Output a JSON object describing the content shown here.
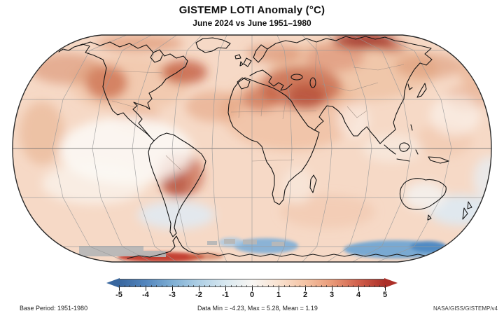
{
  "header": {
    "title": "GISTEMP LOTI Anomaly (°C)",
    "subtitle": "June 2024 vs June 1951–1980"
  },
  "footer": {
    "base_period": "Base Period: 1951-1980",
    "stats": "Data Min = -4.23, Max = 5.28, Mean = 1.19",
    "credit": "NASA/GISS/GISTEMP/v4"
  },
  "colorbar": {
    "min": -5,
    "max": 5,
    "minor_step": 0.2,
    "ticks": [
      -5,
      -4,
      -3,
      -2,
      -1,
      0,
      1,
      2,
      3,
      4,
      5
    ],
    "palette": [
      "#39679f",
      "#5285bd",
      "#7fafd4",
      "#aecfe5",
      "#d8e8f0",
      "#f8f6f3",
      "#f9e2d0",
      "#f4c3a4",
      "#e99a78",
      "#d05f4b",
      "#ac2f28"
    ],
    "units": "°C"
  },
  "chart_data": {
    "type": "heatmap",
    "title": "GISTEMP LOTI Anomaly (°C)",
    "subtitle": "June 2024 vs June 1951–1980",
    "projection": "Robinson world map",
    "variable": "Surface temperature anomaly",
    "units": "°C",
    "base_period": "1951-1980",
    "stats": {
      "data_min": -4.23,
      "data_max": 5.28,
      "mean": 1.19
    },
    "colorbar": {
      "range": [
        -5,
        5
      ],
      "ticks": [
        -5,
        -4,
        -3,
        -2,
        -1,
        0,
        1,
        2,
        3,
        4,
        5
      ],
      "orientation": "horizontal",
      "palette": [
        "#39679f",
        "#5285bd",
        "#7fafd4",
        "#aecfe5",
        "#d8e8f0",
        "#f8f6f3",
        "#f9e2d0",
        "#f4c3a4",
        "#e99a78",
        "#d05f4b",
        "#ac2f28"
      ]
    },
    "notable_anomalies": [
      {
        "region": "Northern Siberia coast",
        "sign": "warm",
        "approx_value": 4.5
      },
      {
        "region": "Eastern Europe / Middle East",
        "sign": "warm",
        "approx_value": 3.5
      },
      {
        "region": "Western United States",
        "sign": "warm",
        "approx_value": 3
      },
      {
        "region": "Labrador Sea / NE Canada",
        "sign": "warm",
        "approx_value": 3
      },
      {
        "region": "Central South America",
        "sign": "warm",
        "approx_value": 3.5
      },
      {
        "region": "Northwest Africa",
        "sign": "warm",
        "approx_value": 3
      },
      {
        "region": "Antarctic Peninsula strip",
        "sign": "warm",
        "approx_value": 5
      },
      {
        "region": "Antarctic coastal ocean (two patches)",
        "sign": "cool",
        "approx_value": -3
      },
      {
        "region": "Eastern tropical Pacific",
        "sign": "neutral",
        "approx_value": 0
      },
      {
        "region": "India / Australia interior",
        "sign": "neutral",
        "approx_value": 0
      },
      {
        "region": "Sea-ice zone near Antarctica",
        "sign": "no-data",
        "approx_value": null
      }
    ],
    "source": "NASA/GISS/GISTEMP/v4"
  }
}
